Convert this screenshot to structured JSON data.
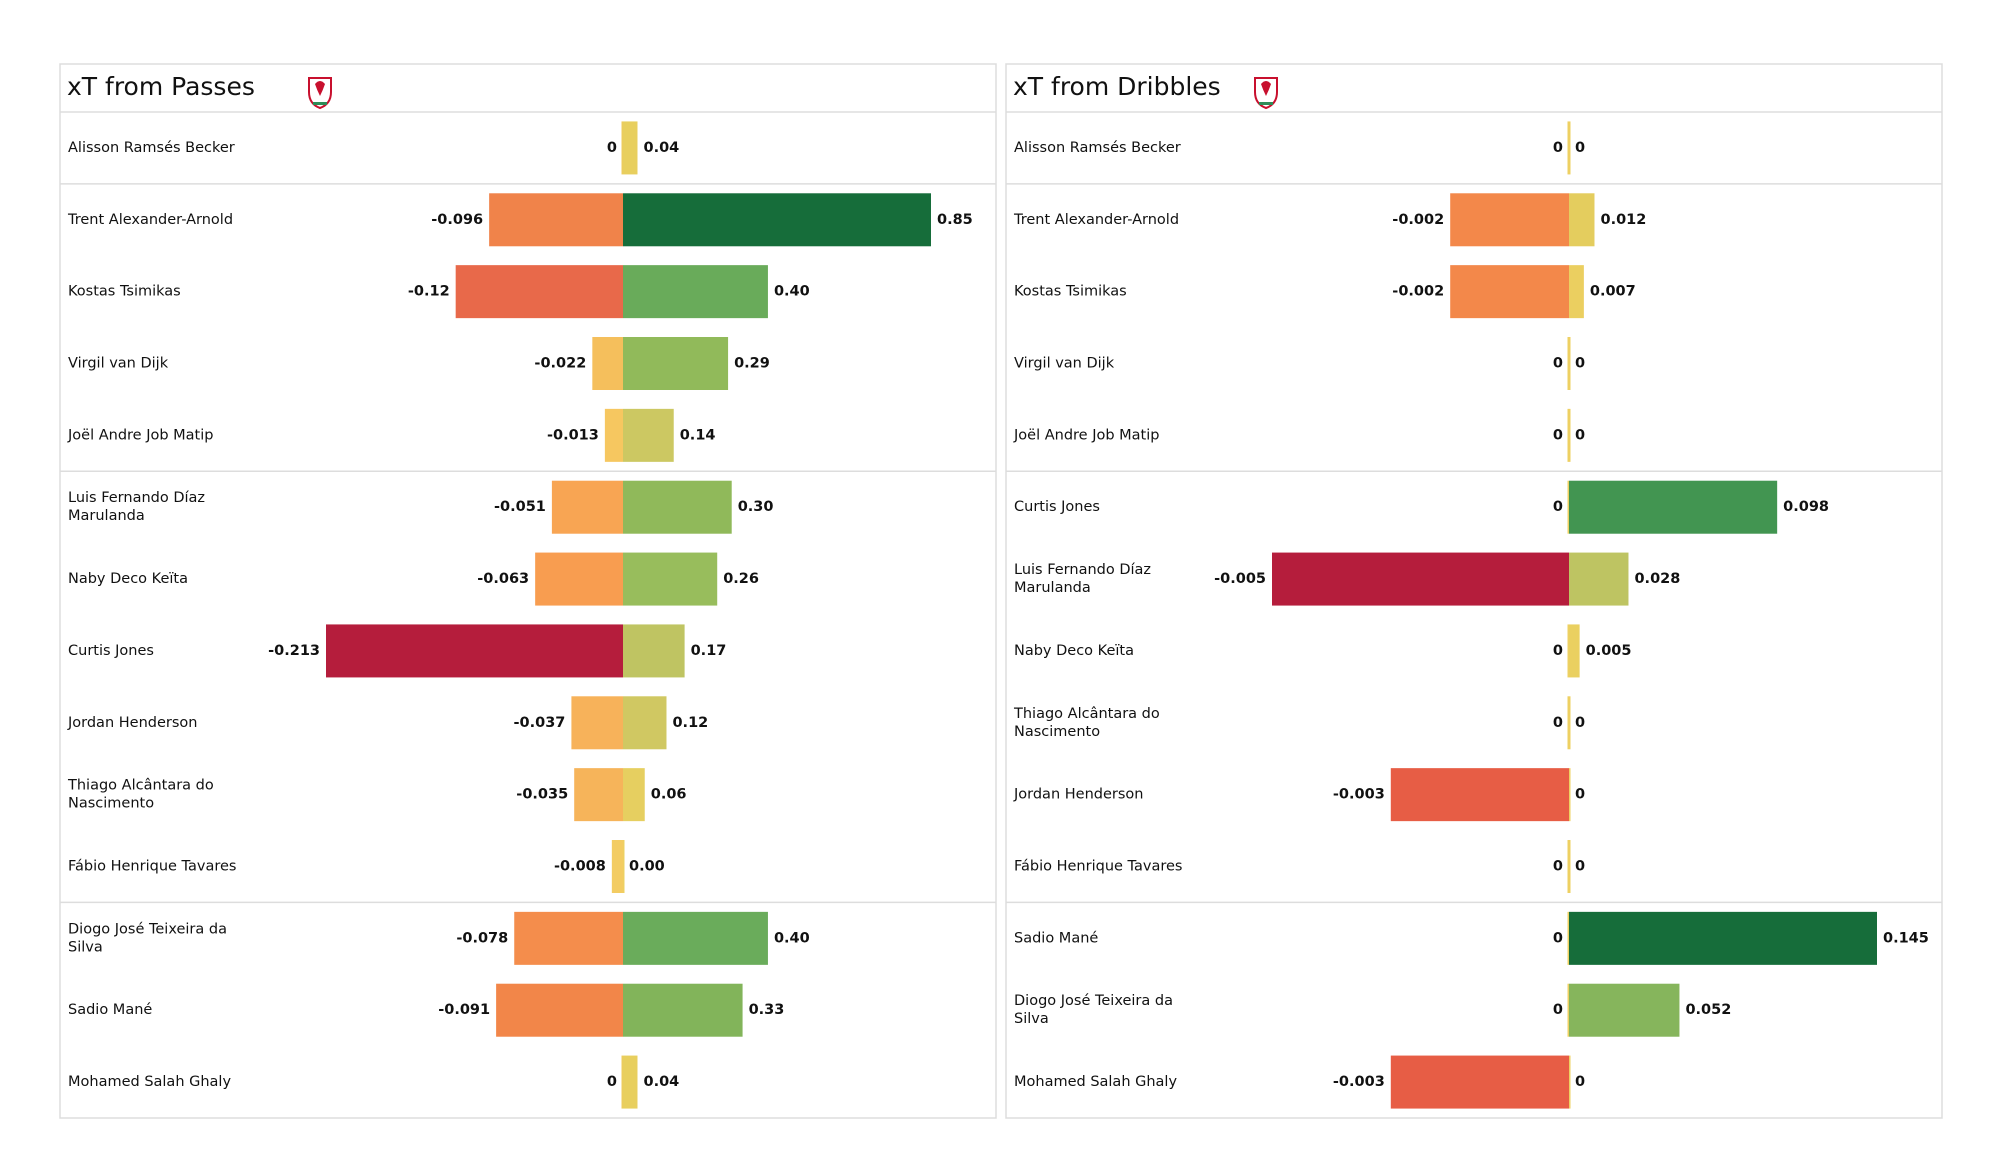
{
  "chart_data": [
    {
      "type": "diverging_bar",
      "title": "xT from Passes",
      "categories": [
        "Alisson Ramsés Becker",
        "Trent Alexander-Arnold",
        "Kostas Tsimikas",
        "Virgil van Dijk",
        "Joël Andre Job Matip",
        "Luis Fernando Díaz Marulanda",
        "Naby Deco Keïta",
        "Curtis Jones",
        "Jordan Henderson",
        "Thiago Alcântara do Nascimento",
        "Fábio Henrique Tavares",
        "Diogo José Teixeira da Silva",
        "Sadio Mané",
        "Mohamed  Salah Ghaly"
      ],
      "series": [
        {
          "values": [
            0,
            -0.096,
            -0.12,
            -0.022,
            -0.013,
            -0.051,
            -0.063,
            -0.213,
            -0.037,
            -0.035,
            -0.008,
            -0.078,
            -0.091,
            0
          ],
          "colors": [
            "#eccc5e",
            "#f0834a",
            "#e8694a",
            "#f5bf5c",
            "#f6c760",
            "#f8a553",
            "#f89d50",
            "#b51d3c",
            "#f7b25a",
            "#f6b45a",
            "#f3cc62",
            "#f48d4c",
            "#f28649",
            "#eccc5e"
          ]
        },
        {
          "values": [
            0.04,
            0.85,
            0.4,
            0.29,
            0.14,
            0.3,
            0.26,
            0.17,
            0.12,
            0.06,
            0,
            0.4,
            0.33,
            0.04
          ],
          "value_labels": [
            "0.04",
            "0.85",
            "0.40",
            "0.29",
            "0.14",
            "0.30",
            "0.26",
            "0.17",
            "0.12",
            "0.06",
            "0.00",
            "0.40",
            "0.33",
            "0.04"
          ],
          "colors": [
            "#e8cf5e",
            "#166d3a",
            "#69ab5a",
            "#91ba5a",
            "#ccc862",
            "#90b95a",
            "#98bd5c",
            "#bfc462",
            "#d0c862",
            "#e6cf60",
            "#eed062",
            "#6aac5b",
            "#82b45a",
            "#e8cf5e"
          ]
        }
      ]
    },
    {
      "type": "diverging_bar",
      "title": "xT from Dribbles",
      "categories": [
        "Alisson Ramsés Becker",
        "Trent Alexander-Arnold",
        "Kostas Tsimikas",
        "Virgil van Dijk",
        "Joël Andre Job Matip",
        "Curtis Jones",
        "Luis Fernando Díaz Marulanda",
        "Naby Deco Keïta",
        "Thiago Alcântara do Nascimento",
        "Jordan Henderson",
        "Fábio Henrique Tavares",
        "Sadio Mané",
        "Diogo José Teixeira da Silva",
        "Mohamed  Salah Ghaly"
      ],
      "series": [
        {
          "values": [
            0,
            -0.002,
            -0.002,
            0,
            0,
            0,
            -0.005,
            0,
            0,
            -0.003,
            0,
            0,
            0,
            -0.003
          ],
          "colors": [
            "#eed062",
            "#f3884a",
            "#f3884a",
            "#eed062",
            "#eed062",
            "#eed062",
            "#b51d3c",
            "#eed062",
            "#eed062",
            "#e75d45",
            "#eed062",
            "#eed062",
            "#eed062",
            "#e75d45"
          ]
        },
        {
          "values": [
            0,
            0.012,
            0.007,
            0,
            0,
            0.098,
            0.028,
            0.005,
            0,
            0,
            0,
            0.145,
            0.052,
            0
          ],
          "colors": [
            "#eed062",
            "#e4cd5e",
            "#ebcf60",
            "#eed062",
            "#eed062",
            "#429551",
            "#bec462",
            "#ead060",
            "#eed062",
            "#eed062",
            "#eed062",
            "#166d3a",
            "#86b55c",
            "#eed062"
          ]
        }
      ]
    }
  ]
}
